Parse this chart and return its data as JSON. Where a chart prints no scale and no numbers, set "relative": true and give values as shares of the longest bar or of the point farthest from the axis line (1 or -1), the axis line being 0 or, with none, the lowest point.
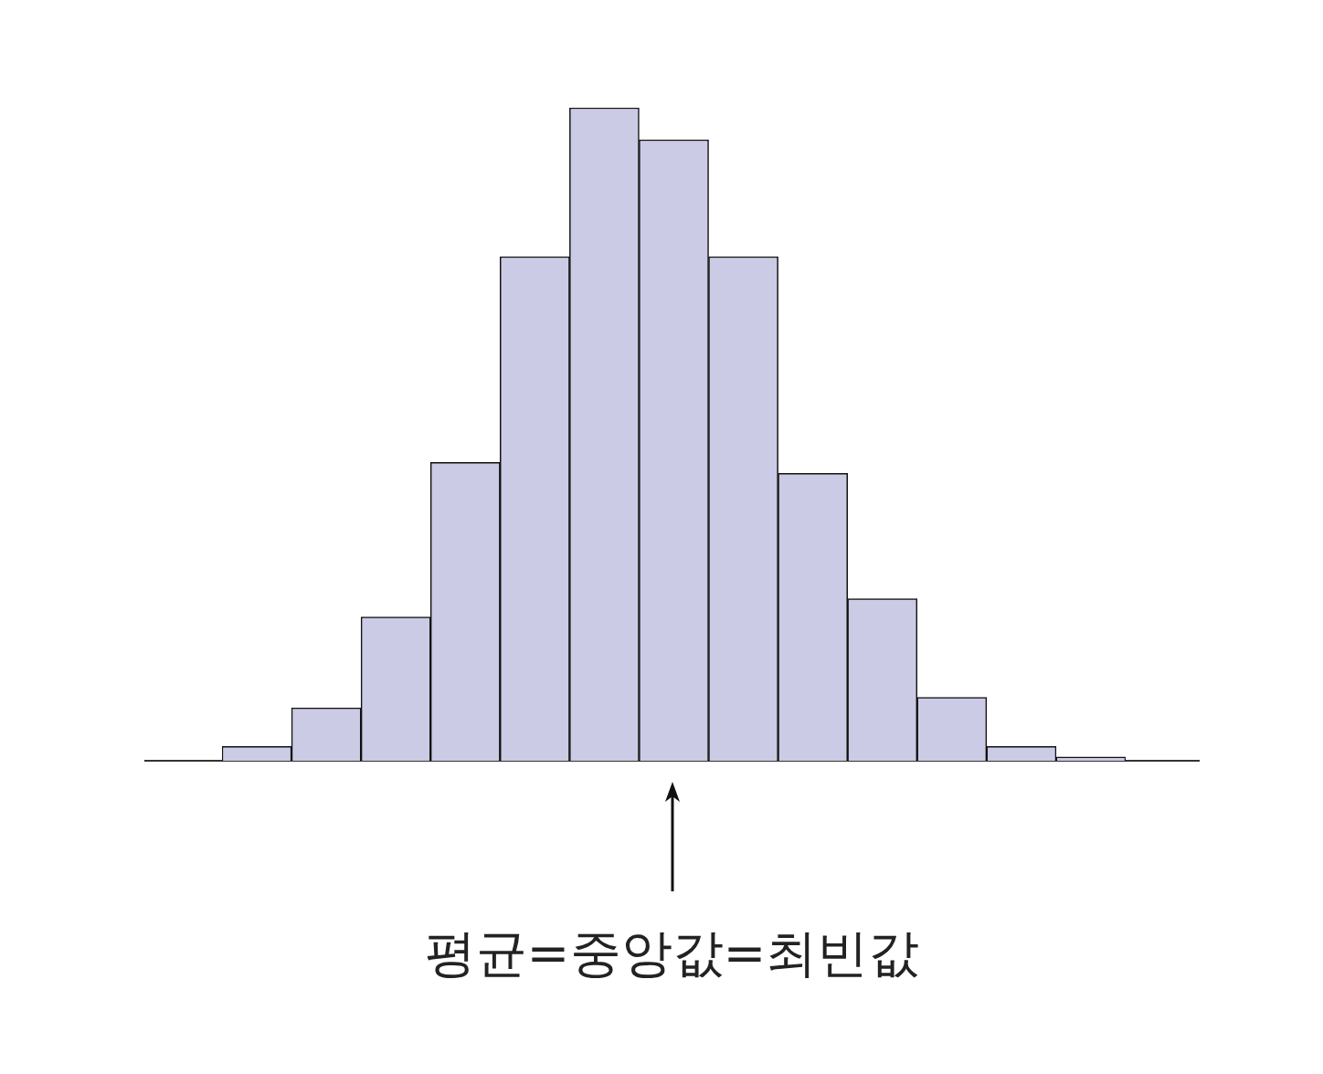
{
  "chart_data": {
    "type": "bar",
    "relative": true,
    "categories": [
      null,
      null,
      null,
      null,
      null,
      null,
      null,
      null,
      null,
      null,
      null,
      null,
      null
    ],
    "values": [
      0.022,
      0.081,
      0.22,
      0.457,
      0.772,
      1,
      0.951,
      0.772,
      0.44,
      0.248,
      0.097,
      0.022,
      0.006
    ],
    "color": "#cbcbe5",
    "grid": false,
    "legend": false,
    "annotations": [
      "평균=중앙값=최빈값"
    ]
  }
}
